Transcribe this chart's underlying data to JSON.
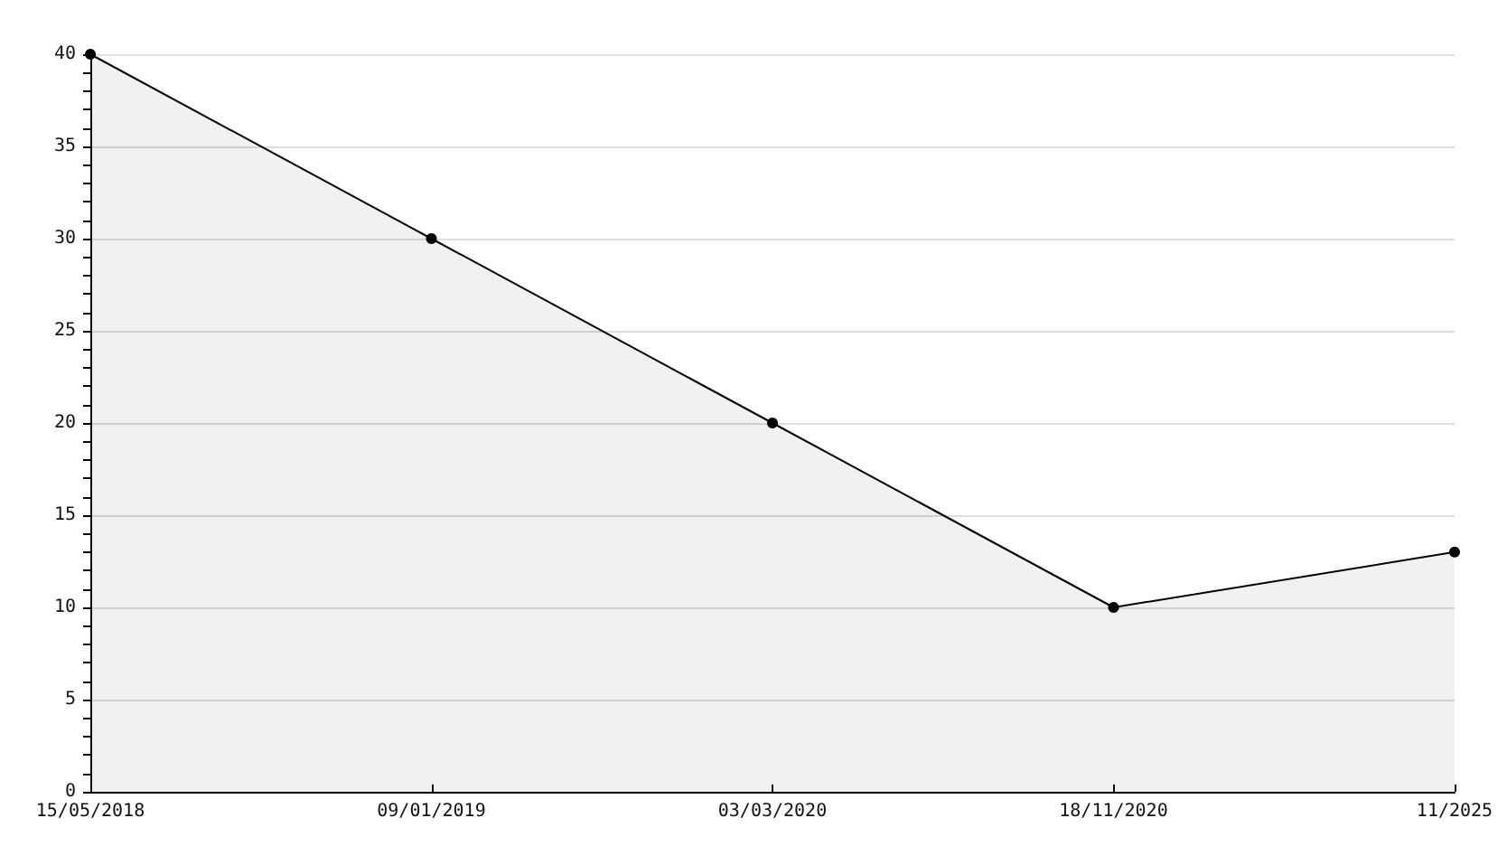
{
  "chart_data": {
    "type": "area",
    "categories": [
      "15/05/2018",
      "09/01/2019",
      "03/03/2020",
      "18/11/2020",
      "11/2025"
    ],
    "values": [
      40,
      30,
      20,
      10,
      13
    ],
    "color": "#000000",
    "ylim": [
      0,
      40
    ],
    "yticks": [
      0,
      5,
      10,
      15,
      20,
      25,
      30,
      35,
      40
    ],
    "grid": "y",
    "marker": "circle",
    "line_style": "solid"
  }
}
